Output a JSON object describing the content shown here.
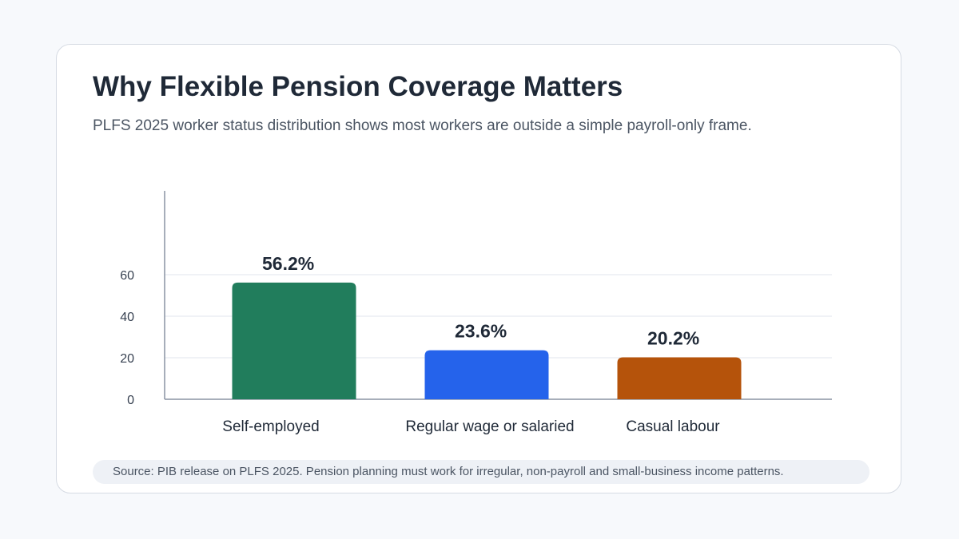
{
  "header": {
    "title": "Why Flexible Pension Coverage Matters",
    "subtitle": "PLFS 2025 worker status distribution shows most workers are outside a simple payroll-only frame."
  },
  "footer": {
    "source": "Source: PIB release on PLFS 2025. Pension planning must work for irregular, non-payroll and small-business income patterns."
  },
  "chart_data": {
    "type": "bar",
    "categories": [
      "Self-employed",
      "Regular wage or salaried",
      "Casual labour"
    ],
    "values": [
      56.2,
      23.6,
      20.2
    ],
    "data_labels": [
      "56.2%",
      "23.6%",
      "20.2%"
    ],
    "colors": [
      "#217d5c",
      "#2563eb",
      "#b5530b"
    ],
    "yticks": [
      0,
      20,
      40,
      60
    ],
    "ylim": [
      0,
      100
    ],
    "grid": true,
    "xlabel": "",
    "ylabel": ""
  }
}
